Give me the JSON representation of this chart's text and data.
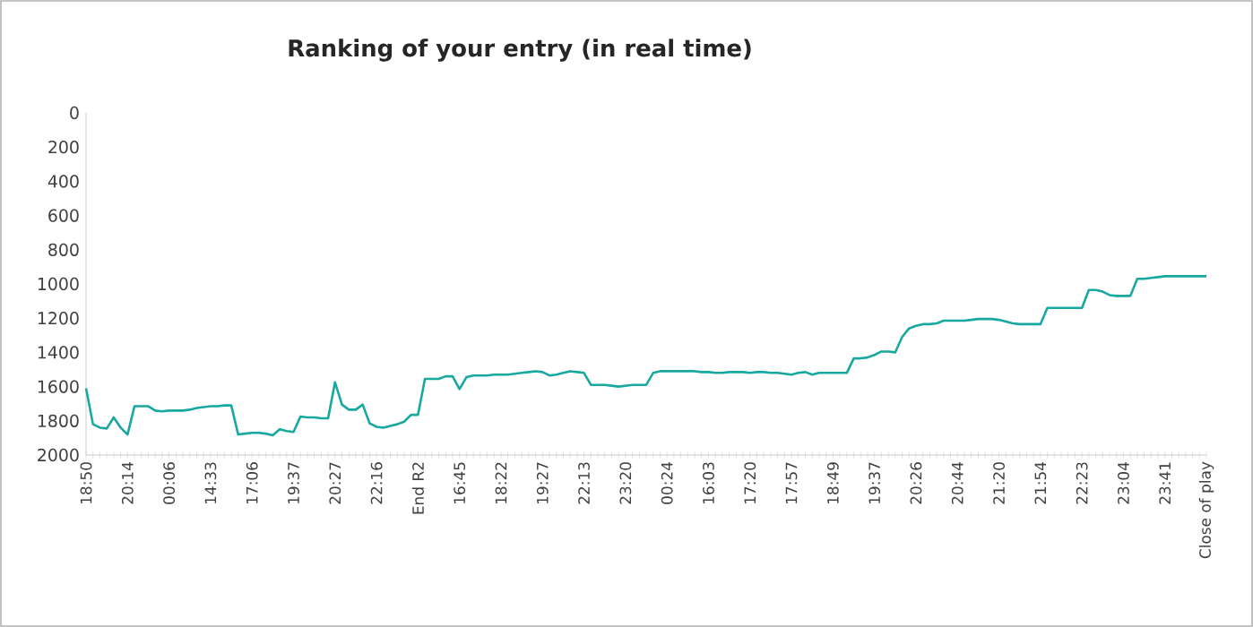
{
  "chart_data": {
    "type": "line",
    "title": "Ranking of your entry (in real time)",
    "categories": [
      "18:50",
      null,
      null,
      null,
      null,
      null,
      "20:14",
      null,
      null,
      null,
      null,
      null,
      "00:06",
      null,
      null,
      null,
      null,
      null,
      "14:33",
      null,
      null,
      null,
      null,
      null,
      "17:06",
      null,
      null,
      null,
      null,
      null,
      "19:37",
      null,
      null,
      null,
      null,
      null,
      "20:27",
      null,
      null,
      null,
      null,
      null,
      "22:16",
      null,
      null,
      null,
      null,
      null,
      "End R2",
      null,
      null,
      null,
      null,
      null,
      "16:45",
      null,
      null,
      null,
      null,
      null,
      "18:22",
      null,
      null,
      null,
      null,
      null,
      "19:27",
      null,
      null,
      null,
      null,
      null,
      "22:13",
      null,
      null,
      null,
      null,
      null,
      "23:20",
      null,
      null,
      null,
      null,
      null,
      "00:24",
      null,
      null,
      null,
      null,
      null,
      "16:03",
      null,
      null,
      null,
      null,
      null,
      "17:20",
      null,
      null,
      null,
      null,
      null,
      "17:57",
      null,
      null,
      null,
      null,
      null,
      "18:49",
      null,
      null,
      null,
      null,
      null,
      "19:37",
      null,
      null,
      null,
      null,
      null,
      "20:26",
      null,
      null,
      null,
      null,
      null,
      "20:44",
      null,
      null,
      null,
      null,
      null,
      "21:20",
      null,
      null,
      null,
      null,
      null,
      "21:54",
      null,
      null,
      null,
      null,
      null,
      "22:23",
      null,
      null,
      null,
      null,
      null,
      "23:04",
      null,
      null,
      null,
      null,
      null,
      "23:41",
      null,
      null,
      null,
      null,
      null,
      "Close of play"
    ],
    "series": [
      {
        "color": "#17a8a0",
        "values": [
          1610,
          1820,
          1840,
          1845,
          1780,
          1840,
          1880,
          1715,
          1715,
          1715,
          1740,
          1745,
          1740,
          1740,
          1740,
          1735,
          1725,
          1720,
          1715,
          1715,
          1710,
          1710,
          1880,
          1875,
          1870,
          1870,
          1875,
          1885,
          1850,
          1860,
          1865,
          1775,
          1780,
          1780,
          1785,
          1785,
          1575,
          1705,
          1735,
          1735,
          1705,
          1815,
          1835,
          1840,
          1830,
          1820,
          1805,
          1765,
          1765,
          1555,
          1555,
          1555,
          1540,
          1540,
          1615,
          1545,
          1535,
          1535,
          1535,
          1530,
          1530,
          1530,
          1525,
          1520,
          1515,
          1510,
          1515,
          1535,
          1530,
          1520,
          1510,
          1515,
          1520,
          1590,
          1590,
          1590,
          1595,
          1600,
          1595,
          1590,
          1590,
          1590,
          1520,
          1510,
          1510,
          1510,
          1510,
          1510,
          1510,
          1515,
          1515,
          1520,
          1520,
          1515,
          1515,
          1515,
          1520,
          1515,
          1515,
          1520,
          1520,
          1525,
          1530,
          1520,
          1515,
          1530,
          1520,
          1520,
          1520,
          1520,
          1520,
          1435,
          1435,
          1430,
          1415,
          1395,
          1395,
          1400,
          1310,
          1260,
          1245,
          1235,
          1235,
          1230,
          1215,
          1215,
          1215,
          1215,
          1210,
          1205,
          1205,
          1205,
          1210,
          1220,
          1230,
          1235,
          1235,
          1235,
          1235,
          1140,
          1140,
          1140,
          1140,
          1140,
          1140,
          1035,
          1035,
          1045,
          1065,
          1070,
          1070,
          1070,
          970,
          970,
          965,
          960,
          955,
          955,
          955,
          955,
          955,
          955,
          955
        ]
      }
    ],
    "ylim": [
      2000,
      0
    ],
    "yticks": [
      0,
      200,
      400,
      600,
      800,
      1000,
      1200,
      1400,
      1600,
      1800,
      2000
    ],
    "grid": false,
    "marker": "none",
    "line_style": "solid"
  }
}
